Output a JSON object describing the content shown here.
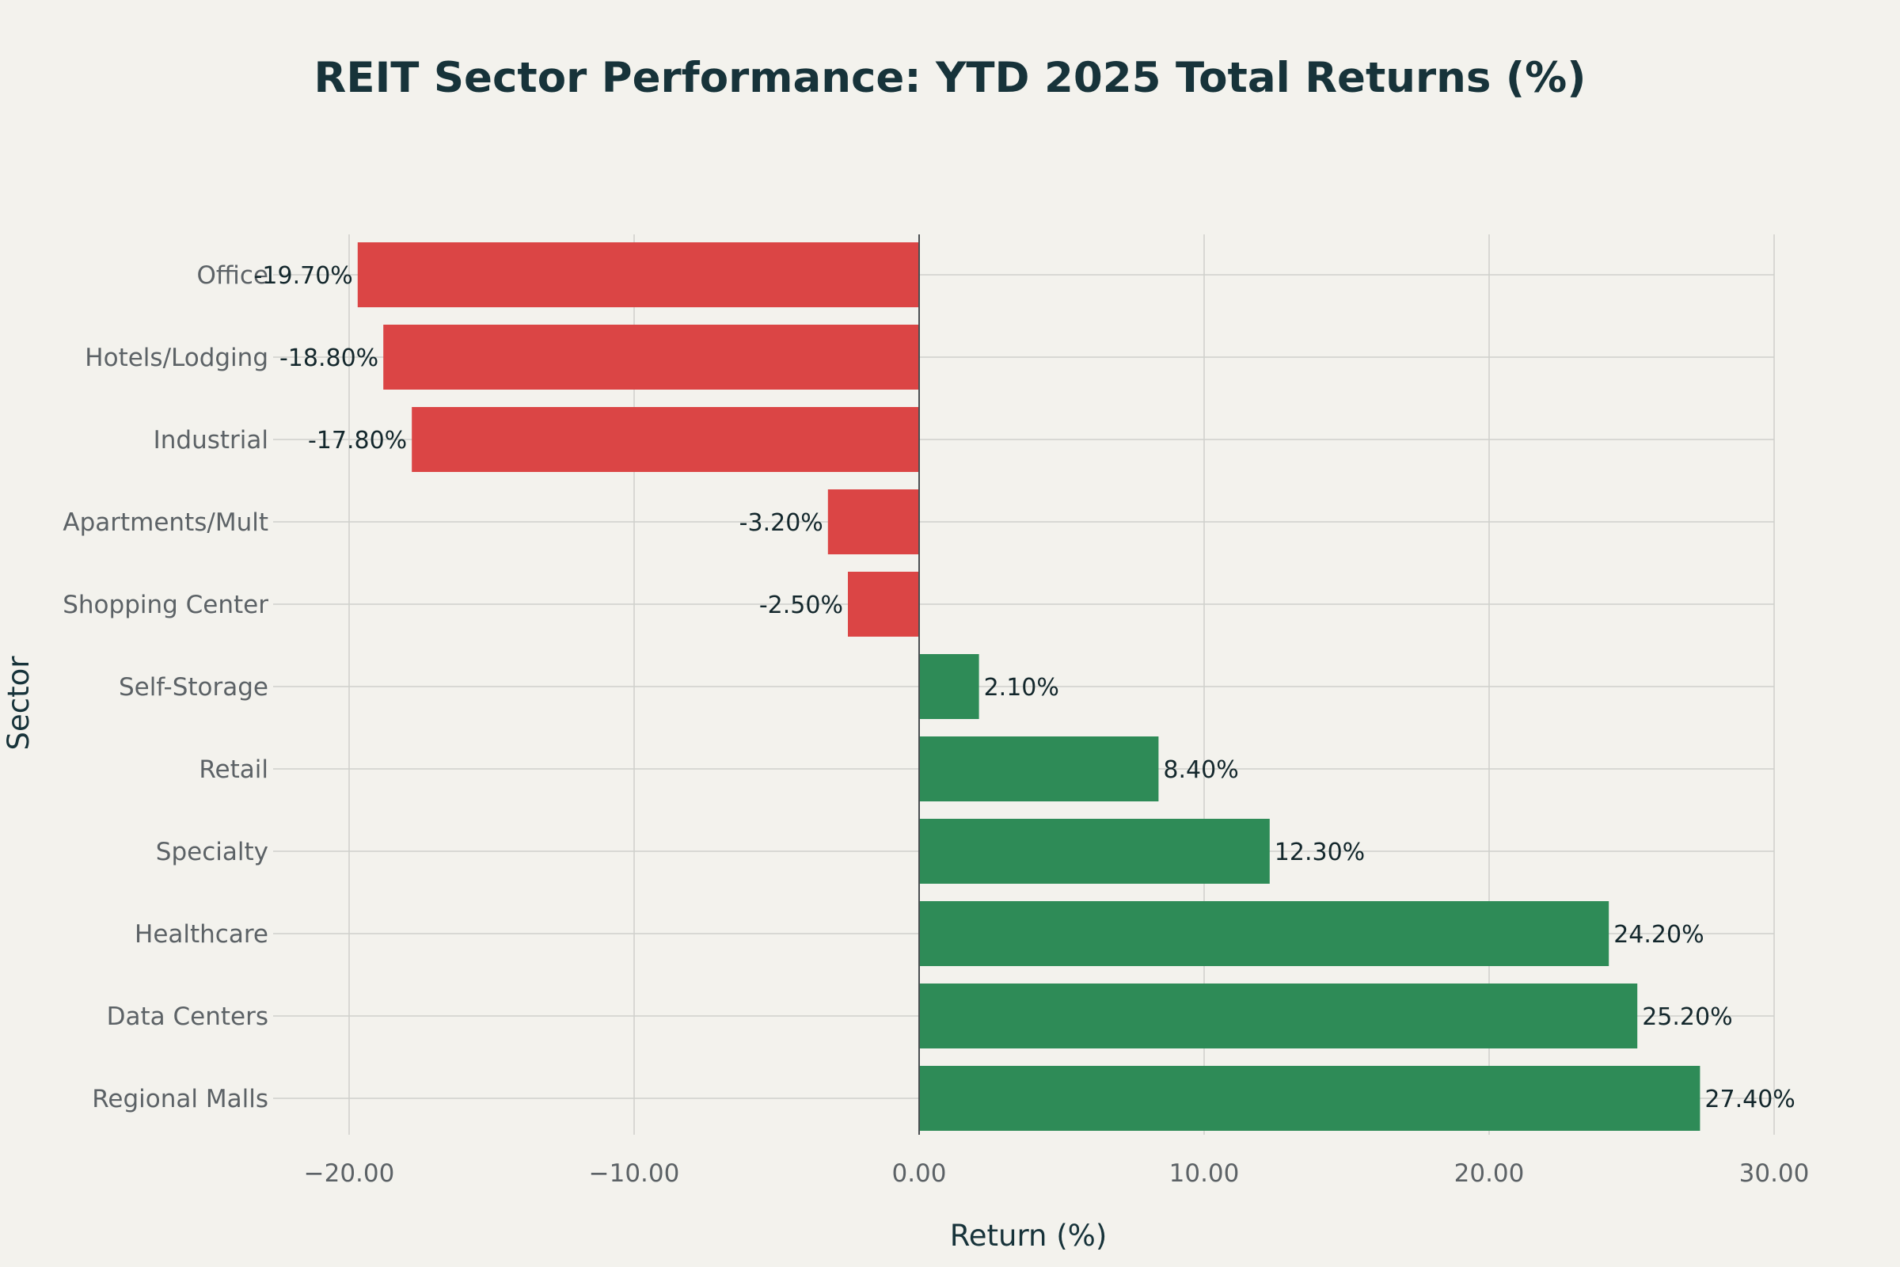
{
  "colors": {
    "background": "#f3f2ed",
    "negative": "#db4545",
    "positive": "#2e8b57",
    "title": "#17333a",
    "tick": "#5c6266",
    "grid": "#cfd0cb"
  },
  "chart_data": {
    "type": "bar",
    "orientation": "horizontal",
    "title": "REIT Sector Performance: YTD 2025 Total Returns (%)",
    "xlabel": "Return (%)",
    "ylabel": "Sector",
    "xlim": [
      -22.5,
      30
    ],
    "xticks": [
      -20,
      -10,
      0,
      10,
      20,
      30
    ],
    "xtick_labels": [
      "−20.00",
      "−10.00",
      "0.00",
      "10.00",
      "20.00",
      "30.00"
    ],
    "grid": true,
    "legend": "none",
    "categories": [
      "Office",
      "Hotels/Lodging",
      "Industrial",
      "Apartments/Mult",
      "Shopping Center",
      "Self-Storage",
      "Retail",
      "Specialty",
      "Healthcare",
      "Data Centers",
      "Regional Malls"
    ],
    "values": [
      -19.7,
      -18.8,
      -17.8,
      -3.2,
      -2.5,
      2.1,
      8.4,
      12.3,
      24.2,
      25.2,
      27.4
    ],
    "value_labels": [
      "-19.70%",
      "-18.80%",
      "-17.80%",
      "-3.20%",
      "-2.50%",
      "2.10%",
      "8.40%",
      "12.30%",
      "24.20%",
      "25.20%",
      "27.40%"
    ]
  }
}
